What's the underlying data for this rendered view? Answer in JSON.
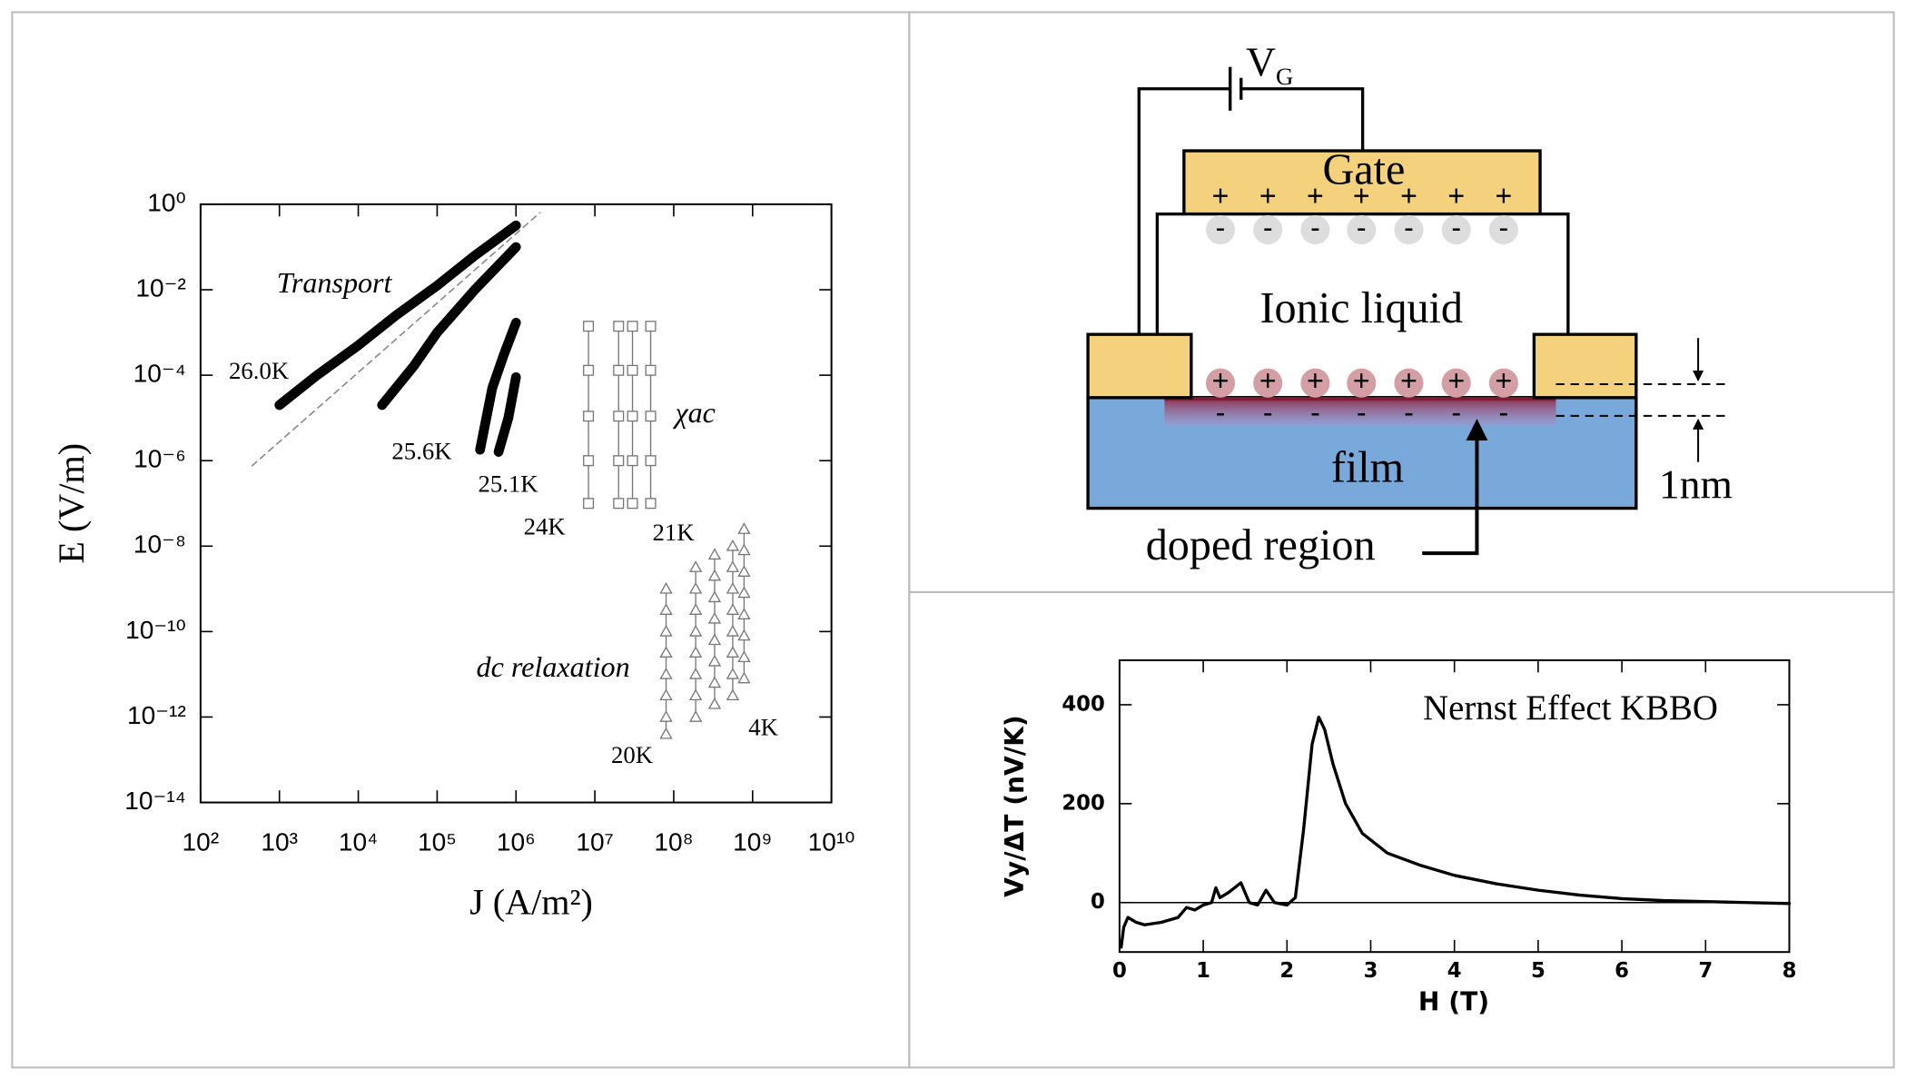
{
  "chart_data": [
    {
      "type": "scatter",
      "xlabel": "J (A/m²)",
      "ylabel": "E (V/m)",
      "xscale": "log",
      "yscale": "log",
      "xlim": [
        100,
        10000000000
      ],
      "ylim": [
        1e-14,
        1
      ],
      "xticks": [
        {
          "value": 100,
          "label": "10²"
        },
        {
          "value": 1000,
          "label": "10³"
        },
        {
          "value": 10000,
          "label": "10⁴"
        },
        {
          "value": 100000,
          "label": "10⁵"
        },
        {
          "value": 1000000,
          "label": "10⁶"
        },
        {
          "value": 10000000,
          "label": "10⁷"
        },
        {
          "value": 100000000,
          "label": "10⁸"
        },
        {
          "value": 1000000000,
          "label": "10⁹"
        },
        {
          "value": 10000000000,
          "label": "10¹⁰"
        }
      ],
      "yticks": [
        {
          "value": 1,
          "label": "10⁰"
        },
        {
          "value": 0.01,
          "label": "10⁻²"
        },
        {
          "value": 0.0001,
          "label": "10⁻⁴"
        },
        {
          "value": 1e-06,
          "label": "10⁻⁶"
        },
        {
          "value": 1e-08,
          "label": "10⁻⁸"
        },
        {
          "value": 1e-10,
          "label": "10⁻¹⁰"
        },
        {
          "value": 1e-12,
          "label": "10⁻¹²"
        },
        {
          "value": 1e-14,
          "label": "10⁻¹⁴"
        }
      ],
      "series": [
        {
          "color": "#888888",
          "style": "dashed",
          "marker": "none",
          "x": [
            450,
            2000000
          ],
          "values": [
            7.6e-07,
            0.63
          ]
        },
        {
          "color": "#000000",
          "style": "thick",
          "marker": "none",
          "x": [
            1000,
            3000,
            10000,
            30000,
            100000,
            300000,
            1000000
          ],
          "values": [
            2e-05,
            0.0001,
            0.0005,
            0.0025,
            0.0125,
            0.063,
            0.32
          ]
        },
        {
          "color": "#000000",
          "style": "thick",
          "marker": "none",
          "x": [
            20000,
            50000,
            100000,
            300000,
            1000000
          ],
          "values": [
            2e-05,
            0.00016,
            0.001,
            0.01,
            0.1
          ]
        },
        {
          "color": "#000000",
          "style": "thick",
          "marker": "none",
          "x": [
            350000,
            500000,
            700000,
            1000000
          ],
          "values": [
            1.8e-06,
            5e-05,
            0.0003,
            0.0017
          ]
        },
        {
          "color": "#000000",
          "style": "thick",
          "marker": "none",
          "x": [
            600000,
            800000,
            1000000
          ],
          "values": [
            1.6e-06,
            1e-05,
            9e-05
          ]
        },
        {
          "color": "#777777",
          "style": "thin",
          "marker": "square",
          "x": [
            8300000,
            8300000,
            8300000,
            8300000,
            8300000
          ],
          "values": [
            0.0014,
            0.00013,
            1.1e-05,
            1e-06,
            1e-07
          ]
        },
        {
          "color": "#777777",
          "style": "thin",
          "marker": "square",
          "x": [
            20000000,
            20000000,
            20000000,
            20000000,
            20000000
          ],
          "values": [
            0.0014,
            0.00013,
            1.1e-05,
            1e-06,
            1e-07
          ]
        },
        {
          "color": "#777777",
          "style": "thin",
          "marker": "square",
          "x": [
            30000000,
            30000000,
            30000000,
            30000000,
            30000000
          ],
          "values": [
            0.0014,
            0.00013,
            1.1e-05,
            1e-06,
            1e-07
          ]
        },
        {
          "color": "#777777",
          "style": "thin",
          "marker": "square",
          "x": [
            51000000,
            51000000,
            51000000,
            51000000,
            51000000
          ],
          "values": [
            0.0014,
            0.00013,
            1.1e-05,
            1e-06,
            1e-07
          ]
        },
        {
          "color": "#777777",
          "style": "thin",
          "marker": "triangle",
          "x": [
            80000000,
            80000000,
            80000000,
            80000000,
            80000000,
            80000000,
            80000000,
            80000000
          ],
          "values": [
            1e-09,
            3.2e-10,
            1e-10,
            3.2e-11,
            1e-11,
            3.2e-12,
            1e-12,
            4e-13
          ]
        },
        {
          "color": "#777777",
          "style": "thin",
          "marker": "triangle",
          "x": [
            190000000,
            190000000,
            190000000,
            190000000,
            190000000,
            190000000,
            190000000,
            190000000
          ],
          "values": [
            3.2e-09,
            1e-09,
            3.2e-10,
            1e-10,
            3.2e-11,
            1e-11,
            3.2e-12,
            1e-12
          ]
        },
        {
          "color": "#777777",
          "style": "thin",
          "marker": "triangle",
          "x": [
            330000000,
            330000000,
            330000000,
            330000000,
            330000000,
            330000000,
            330000000,
            330000000
          ],
          "values": [
            6.3e-09,
            2e-09,
            6.3e-10,
            2e-10,
            6.3e-11,
            2e-11,
            6.3e-12,
            2e-12
          ]
        },
        {
          "color": "#777777",
          "style": "thin",
          "marker": "triangle",
          "x": [
            560000000,
            560000000,
            560000000,
            560000000,
            560000000,
            560000000,
            560000000,
            560000000
          ],
          "values": [
            1e-08,
            3.2e-09,
            1e-09,
            3.2e-10,
            1e-10,
            3.2e-11,
            1e-11,
            3.2e-12
          ]
        },
        {
          "color": "#777777",
          "style": "thin",
          "marker": "triangle",
          "x": [
            780000000,
            780000000,
            780000000,
            780000000,
            780000000,
            780000000,
            780000000,
            780000000
          ],
          "values": [
            2.5e-08,
            8e-09,
            2.5e-09,
            8e-10,
            2.5e-10,
            8e-11,
            2.5e-11,
            8e-12
          ]
        }
      ],
      "annotations": [
        "Transport",
        "26.0K",
        "25.6K",
        "25.1K",
        "χac",
        "24K",
        "21K",
        "dc relaxation",
        "20K",
        "4K"
      ]
    },
    {
      "type": "line",
      "title": "Nernst Effect KBBO",
      "xlabel": "H (T)",
      "ylabel": "Vy/ΔT (nV/K)",
      "xlim": [
        0,
        8
      ],
      "ylim": [
        -100,
        490
      ],
      "xticks": [
        0,
        1,
        2,
        3,
        4,
        5,
        6,
        7,
        8
      ],
      "yticks": [
        0,
        200,
        400
      ],
      "zero_line": true,
      "series": [
        {
          "color": "#000000",
          "x": [
            0.02,
            0.05,
            0.1,
            0.2,
            0.3,
            0.5,
            0.7,
            0.8,
            0.9,
            1.0,
            1.1,
            1.15,
            1.2,
            1.3,
            1.45,
            1.55,
            1.65,
            1.75,
            1.85,
            2.0,
            2.1,
            2.2,
            2.3,
            2.38,
            2.45,
            2.55,
            2.7,
            2.9,
            3.2,
            3.6,
            4.0,
            4.5,
            5.0,
            5.5,
            6.0,
            6.5,
            7.0,
            7.5,
            8.0
          ],
          "values": [
            -90,
            -50,
            -30,
            -40,
            -45,
            -40,
            -30,
            -10,
            -15,
            -5,
            0,
            30,
            10,
            20,
            40,
            0,
            -5,
            25,
            0,
            -5,
            10,
            150,
            320,
            375,
            350,
            280,
            200,
            140,
            100,
            75,
            55,
            38,
            25,
            15,
            8,
            4,
            2,
            0,
            -2
          ]
        }
      ]
    }
  ],
  "diagram": {
    "gate_voltage": {
      "symbol": "V",
      "subscript": "G"
    },
    "gate": "Gate",
    "gate_charges": [
      "+",
      "+",
      "+",
      "+",
      "+",
      "+",
      "+"
    ],
    "gate_counter_charges": [
      "-",
      "-",
      "-",
      "-",
      "-",
      "-",
      "-"
    ],
    "electrolyte": "Ionic liquid",
    "surface_ions": [
      "+",
      "+",
      "+",
      "+",
      "+",
      "+",
      "+"
    ],
    "film_charges": [
      "-",
      "-",
      "-",
      "-",
      "-",
      "-",
      "-"
    ],
    "film": "film",
    "doped_region": "doped region",
    "thickness": "1nm"
  }
}
